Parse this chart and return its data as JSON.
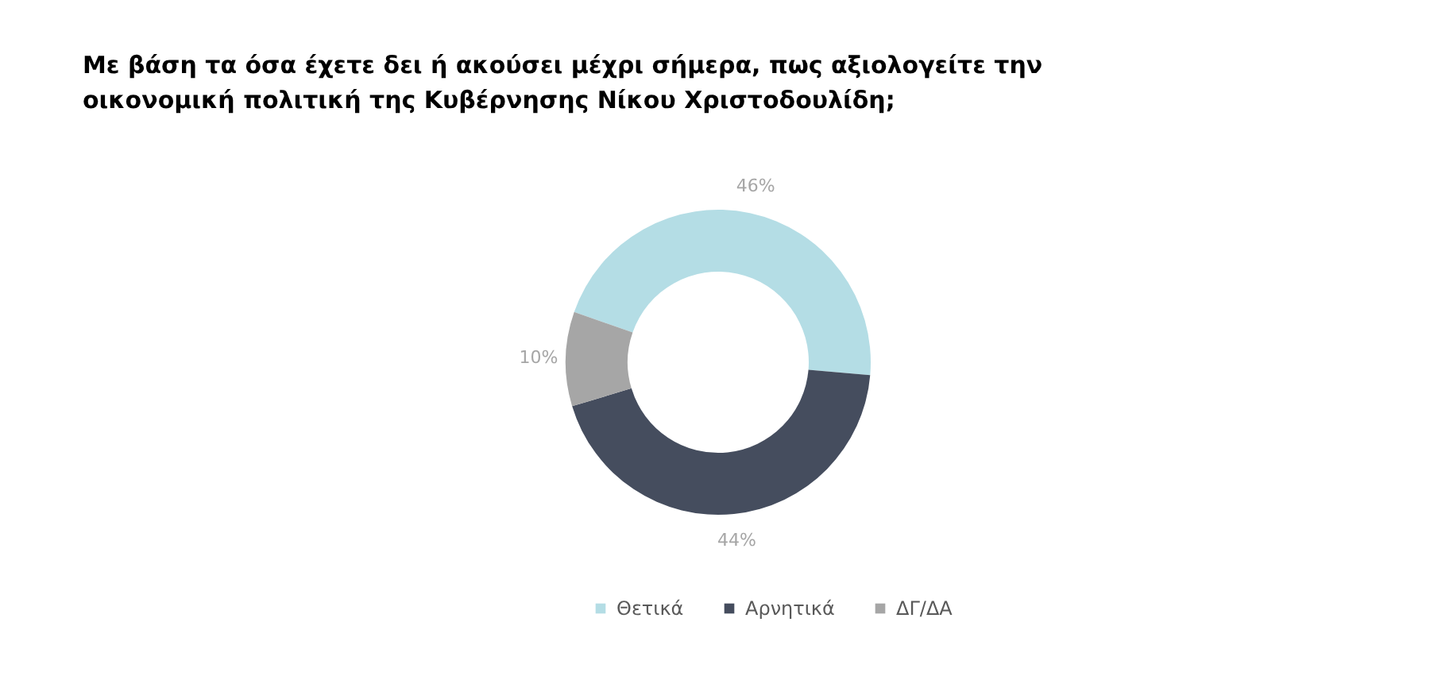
{
  "chart_data": {
    "type": "donut",
    "title": "Με βάση τα όσα έχετε δει ή ακούσει μέχρι σήμερα, πως αξιολογείτε την οικονομική πολιτική της Κυβέρνησης Νίκου Χριστοδουλίδη;",
    "categories": [
      "Θετικά",
      "Αρνητικά",
      "ΔΓ/ΔΑ"
    ],
    "values": [
      46,
      44,
      10
    ],
    "colors": [
      "#b4dde5",
      "#454d5e",
      "#a6a6a6"
    ],
    "value_labels": [
      "46%",
      "44%",
      "10%"
    ],
    "legend": "bottom"
  }
}
